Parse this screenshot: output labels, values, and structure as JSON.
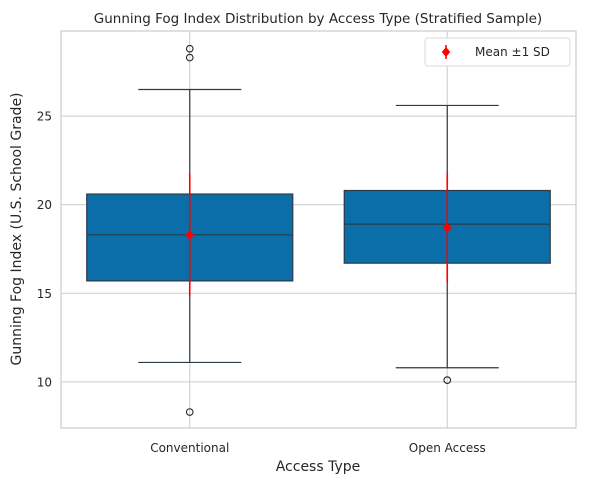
{
  "chart_data": {
    "type": "box",
    "title": "Gunning Fog Index Distribution by Access Type (Stratified Sample)",
    "xlabel": "Access Type",
    "ylabel": "Gunning Fog Index (U.S. School Grade)",
    "ylim": [
      7.4,
      29.8
    ],
    "yticks": [
      10,
      15,
      20,
      25
    ],
    "ytick_labels": [
      "10",
      "15",
      "20",
      "25"
    ],
    "grid": true,
    "categories": [
      "Conventional",
      "Open Access"
    ],
    "box_color": "#0b6ea8",
    "mean_color": "#ff0000",
    "groups": [
      {
        "category": "Conventional",
        "whisker_low": 11.1,
        "q1": 15.7,
        "median": 18.3,
        "q3": 20.6,
        "whisker_high": 26.5,
        "outliers": [
          8.3,
          28.3,
          28.8
        ],
        "mean": 18.3,
        "sd": 3.45
      },
      {
        "category": "Open Access",
        "whisker_low": 10.8,
        "q1": 16.7,
        "median": 18.9,
        "q3": 20.8,
        "whisker_high": 25.6,
        "outliers": [
          10.1
        ],
        "mean": 18.7,
        "sd": 3.1
      }
    ],
    "legend": {
      "position": "top-right",
      "entries": [
        {
          "label": "Mean ±1 SD",
          "marker": "diamond-errorbar",
          "color": "#ff0000"
        }
      ]
    }
  }
}
